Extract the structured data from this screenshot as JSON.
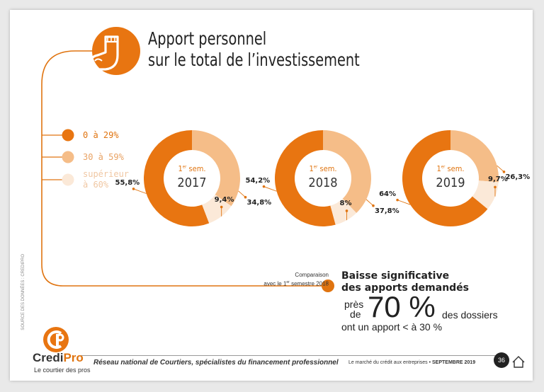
{
  "title_lines": [
    "Apport personnel",
    "sur le total de l’investissement"
  ],
  "legend": [
    {
      "label": "0 à 29%",
      "color": "#e87511"
    },
    {
      "label": "30 à 59%",
      "color": "#f5bd88"
    },
    {
      "label_lines": [
        "supérieur",
        "à 60%"
      ],
      "color": "#fbe9d8"
    }
  ],
  "colors": {
    "accent": "#e07410",
    "dark_orange": "#e87511",
    "mid_orange": "#f5bd88",
    "light_orange": "#fbe9d8"
  },
  "chart_data": [
    {
      "type": "pie",
      "center_label": "1er sem.",
      "year": "2017",
      "slices": [
        {
          "category": "0 à 29%",
          "value": 55.8,
          "label": "55,8%"
        },
        {
          "category": "30 à 59%",
          "value": 34.8,
          "label": "34,8%"
        },
        {
          "category": "supérieur à 60%",
          "value": 9.4,
          "label": "9,4%"
        }
      ]
    },
    {
      "type": "pie",
      "center_label": "1er sem.",
      "year": "2018",
      "slices": [
        {
          "category": "0 à 29%",
          "value": 54.2,
          "label": "54,2%"
        },
        {
          "category": "30 à 59%",
          "value": 37.8,
          "label": "37,8%"
        },
        {
          "category": "supérieur à 60%",
          "value": 8,
          "label": "8%"
        }
      ]
    },
    {
      "type": "pie",
      "center_label": "1er sem.",
      "year": "2019",
      "slices": [
        {
          "category": "0 à 29%",
          "value": 64,
          "label": "64%"
        },
        {
          "category": "30 à 59%",
          "value": 26.3,
          "label": "26,3%"
        },
        {
          "category": "supérieur à 60%",
          "value": 9.7,
          "label": "9,7%"
        }
      ]
    }
  ],
  "comparison": {
    "line1": "Comparaison",
    "line2_pre": "avec le 1",
    "line2_sup": "er",
    "line2_post": " semestre 2018"
  },
  "highlight": {
    "line1": "Baisse significative",
    "line2": "des apports demandés",
    "pres": "près",
    "de": "de",
    "big": "70 %",
    "dossiers": "des dossiers",
    "last": "ont un apport < à 30 %"
  },
  "source": "SOURCE DES DONNÉES : CREDIPRO",
  "footer": {
    "brand_a": "Credi",
    "brand_b": "Pro",
    "brand_sub": "Le courtier des pros",
    "reseau": "Réseau national de Courtiers, spécialistes du financement professionnel",
    "marche_a": "Le marché du crédit aux entreprises • ",
    "marche_b": "SEPTEMBRE 2019",
    "page": "36"
  }
}
